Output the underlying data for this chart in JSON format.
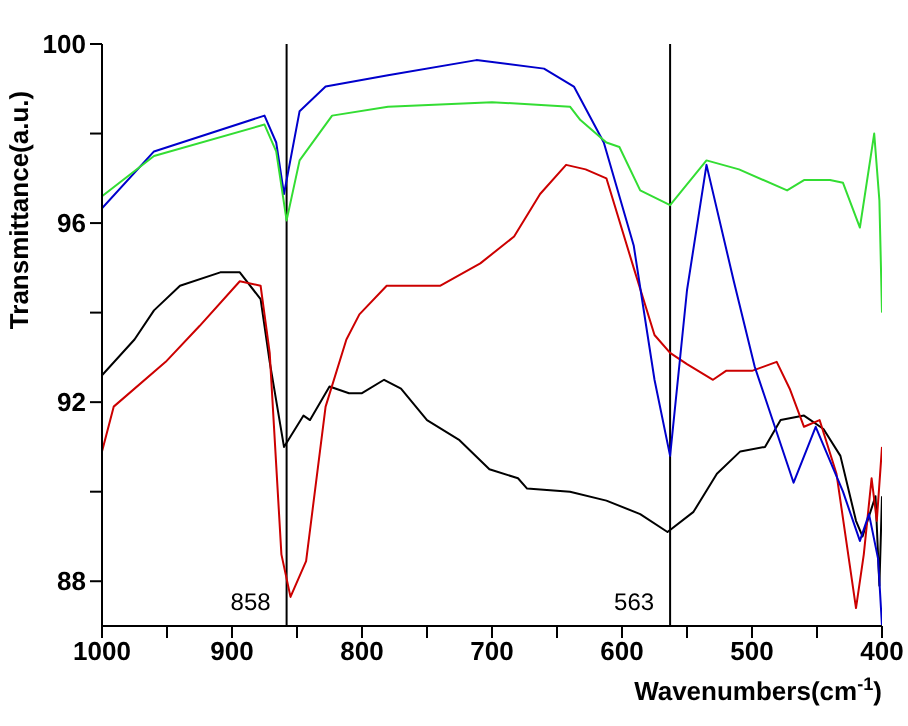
{
  "chart_data": {
    "type": "line",
    "xlabel": "Wavenumbers(cm$^{-1}$)",
    "ylabel": "Transmittance(a.u.)",
    "xlim": [
      1000,
      400
    ],
    "ylim": [
      87,
      100
    ],
    "xticks": [
      1000,
      {
        "value": 950,
        "label": null
      },
      900,
      {
        "value": 850,
        "label": null
      },
      800,
      {
        "value": 750,
        "label": null
      },
      700,
      {
        "value": 650,
        "label": null
      },
      600,
      {
        "value": 550,
        "label": null
      },
      500,
      {
        "value": 450,
        "label": null
      },
      400
    ],
    "yticks": [
      88,
      {
        "value": 90,
        "label": null
      },
      92,
      {
        "value": 94,
        "label": null
      },
      96,
      {
        "value": 98,
        "label": null
      },
      100
    ],
    "marker": "none",
    "line_style": "solid",
    "ref_lines": [
      {
        "axis": "x",
        "value": 858,
        "label": "858",
        "color": "#000000"
      },
      {
        "axis": "x",
        "value": 563,
        "label": "563",
        "color": "#000000"
      }
    ],
    "series": [
      {
        "color": "#000000",
        "x": [
          1000,
          975,
          960,
          940,
          909,
          894,
          878,
          871,
          860,
          845,
          840,
          825,
          810,
          800,
          783,
          770,
          750,
          725,
          702,
          680,
          673,
          640,
          612,
          586,
          565,
          545,
          527,
          509,
          490,
          478,
          460,
          445,
          432,
          420,
          415,
          410,
          405,
          402,
          400
        ],
        "values": [
          92.6,
          93.4,
          94.05,
          94.6,
          94.9,
          94.9,
          94.3,
          92.9,
          91.0,
          91.7,
          91.6,
          92.35,
          92.2,
          92.2,
          92.5,
          92.3,
          91.6,
          91.15,
          90.5,
          90.3,
          90.07,
          90.0,
          89.8,
          89.5,
          89.1,
          89.55,
          90.4,
          90.9,
          91.0,
          91.6,
          91.7,
          91.4,
          90.8,
          89.35,
          89.0,
          89.45,
          89.9,
          87.9,
          89.9
        ]
      },
      {
        "color": "#cc0000",
        "x": [
          1000,
          991,
          951,
          925,
          894,
          878,
          871,
          862,
          855,
          843,
          828,
          812,
          802,
          781,
          740,
          709,
          683,
          663,
          643,
          628,
          612,
          591,
          575,
          563,
          550,
          530,
          520,
          500,
          481,
          471,
          460,
          448,
          435,
          420,
          414,
          408,
          404,
          400
        ],
        "values": [
          90.9,
          91.9,
          92.9,
          93.7,
          94.7,
          94.6,
          93.1,
          88.6,
          87.65,
          88.45,
          91.9,
          93.4,
          93.96,
          94.6,
          94.6,
          95.1,
          95.7,
          96.65,
          97.3,
          97.2,
          97.0,
          95.0,
          93.5,
          93.1,
          92.85,
          92.5,
          92.7,
          92.7,
          92.9,
          92.3,
          91.45,
          91.6,
          90.4,
          87.4,
          88.6,
          90.3,
          89.35,
          91.0
        ]
      },
      {
        "color": "#0000cc",
        "x": [
          1000,
          960,
          875,
          866,
          860,
          848,
          828,
          780,
          712,
          660,
          637,
          614,
          591,
          575,
          563,
          550,
          535,
          514,
          498,
          468,
          451,
          430,
          417,
          410,
          403,
          400
        ],
        "values": [
          96.33,
          97.6,
          98.4,
          97.8,
          96.65,
          98.5,
          99.05,
          99.3,
          99.64,
          99.45,
          99.05,
          97.8,
          95.5,
          92.5,
          90.8,
          94.5,
          97.3,
          94.7,
          92.8,
          90.2,
          91.45,
          90.0,
          88.9,
          89.5,
          88.5,
          87.0
        ]
      },
      {
        "color": "#33dd33",
        "x": [
          1000,
          960,
          875,
          866,
          858,
          848,
          823,
          780,
          700,
          640,
          632,
          612,
          602,
          586,
          563,
          535,
          510,
          473,
          460,
          440,
          430,
          417,
          406,
          402,
          400
        ],
        "values": [
          96.6,
          97.5,
          98.2,
          97.6,
          96.06,
          97.4,
          98.4,
          98.6,
          98.7,
          98.6,
          98.3,
          97.8,
          97.7,
          96.73,
          96.4,
          97.4,
          97.2,
          96.73,
          96.96,
          96.96,
          96.9,
          95.9,
          98.0,
          96.5,
          94.0
        ]
      }
    ]
  }
}
